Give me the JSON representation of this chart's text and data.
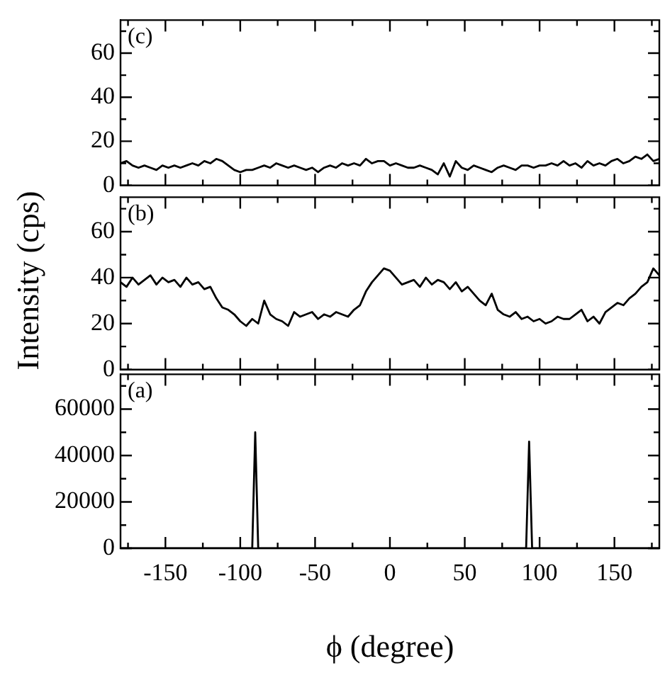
{
  "chart_data": [
    {
      "type": "line",
      "annotations": [
        "(c)"
      ],
      "xlim": [
        -180,
        180
      ],
      "xticks": [
        {
          "value": -175,
          "label": null
        },
        -150,
        {
          "value": -125,
          "label": null
        },
        -100,
        {
          "value": -75,
          "label": null
        },
        -50,
        {
          "value": -25,
          "label": null
        },
        0,
        {
          "value": 25,
          "label": null
        },
        50,
        {
          "value": 75,
          "label": null
        },
        100,
        {
          "value": 125,
          "label": null
        },
        150,
        {
          "value": 175,
          "label": null
        }
      ],
      "ylim": [
        0,
        75
      ],
      "yticks": [
        0,
        {
          "value": 10,
          "label": null
        },
        20,
        {
          "value": 30,
          "label": null
        },
        40,
        {
          "value": 50,
          "label": null
        },
        60,
        {
          "value": 70,
          "label": null
        }
      ],
      "tick_labels": "y",
      "grid": false,
      "legend": false,
      "marker": "none",
      "line_style": "solid",
      "x": [
        -180,
        -176,
        -172,
        -168,
        -164,
        -160,
        -156,
        -152,
        -148,
        -144,
        -140,
        -136,
        -132,
        -128,
        -124,
        -120,
        -116,
        -112,
        -108,
        -104,
        -100,
        -96,
        -92,
        -88,
        -84,
        -80,
        -76,
        -72,
        -68,
        -64,
        -60,
        -56,
        -52,
        -48,
        -44,
        -40,
        -36,
        -32,
        -28,
        -24,
        -20,
        -16,
        -12,
        -8,
        -4,
        0,
        4,
        8,
        12,
        16,
        20,
        24,
        28,
        32,
        36,
        40,
        44,
        48,
        52,
        56,
        60,
        64,
        68,
        72,
        76,
        80,
        84,
        88,
        92,
        96,
        100,
        104,
        108,
        112,
        116,
        120,
        124,
        128,
        132,
        136,
        140,
        144,
        148,
        152,
        156,
        160,
        164,
        168,
        172,
        176,
        180
      ],
      "series": [
        {
          "color": "#000000",
          "values": [
            10,
            11,
            9,
            8,
            9,
            8,
            7,
            9,
            8,
            9,
            8,
            9,
            10,
            9,
            11,
            10,
            12,
            11,
            9,
            7,
            6,
            7,
            7,
            8,
            9,
            8,
            10,
            9,
            8,
            9,
            8,
            7,
            8,
            6,
            8,
            9,
            8,
            10,
            9,
            10,
            9,
            12,
            10,
            11,
            11,
            9,
            10,
            9,
            8,
            8,
            9,
            8,
            7,
            5,
            10,
            4,
            11,
            8,
            7,
            9,
            8,
            7,
            6,
            8,
            9,
            8,
            7,
            9,
            9,
            8,
            9,
            9,
            10,
            9,
            11,
            9,
            10,
            8,
            11,
            9,
            10,
            9,
            11,
            12,
            10,
            11,
            13,
            12,
            14,
            11,
            12
          ]
        }
      ]
    },
    {
      "type": "line",
      "annotations": [
        "(b)"
      ],
      "ylabel": "Intensity (cps)",
      "xlim": [
        -180,
        180
      ],
      "xticks": [
        {
          "value": -175,
          "label": null
        },
        -150,
        {
          "value": -125,
          "label": null
        },
        -100,
        {
          "value": -75,
          "label": null
        },
        -50,
        {
          "value": -25,
          "label": null
        },
        0,
        {
          "value": 25,
          "label": null
        },
        50,
        {
          "value": 75,
          "label": null
        },
        100,
        {
          "value": 125,
          "label": null
        },
        150,
        {
          "value": 175,
          "label": null
        }
      ],
      "ylim": [
        0,
        75
      ],
      "yticks": [
        0,
        {
          "value": 10,
          "label": null
        },
        20,
        {
          "value": 30,
          "label": null
        },
        40,
        {
          "value": 50,
          "label": null
        },
        60,
        {
          "value": 70,
          "label": null
        }
      ],
      "tick_labels": "y",
      "grid": false,
      "legend": false,
      "marker": "none",
      "line_style": "solid",
      "x": [
        -180,
        -176,
        -172,
        -168,
        -164,
        -160,
        -156,
        -152,
        -148,
        -144,
        -140,
        -136,
        -132,
        -128,
        -124,
        -120,
        -116,
        -112,
        -108,
        -104,
        -100,
        -96,
        -92,
        -88,
        -84,
        -80,
        -76,
        -72,
        -68,
        -64,
        -60,
        -56,
        -52,
        -48,
        -44,
        -40,
        -36,
        -32,
        -28,
        -24,
        -20,
        -16,
        -12,
        -8,
        -4,
        0,
        4,
        8,
        12,
        16,
        20,
        24,
        28,
        32,
        36,
        40,
        44,
        48,
        52,
        56,
        60,
        64,
        68,
        72,
        76,
        80,
        84,
        88,
        92,
        96,
        100,
        104,
        108,
        112,
        116,
        120,
        124,
        128,
        132,
        136,
        140,
        144,
        148,
        152,
        156,
        160,
        164,
        168,
        172,
        176,
        180
      ],
      "series": [
        {
          "color": "#000000",
          "values": [
            38,
            36,
            40,
            37,
            39,
            41,
            37,
            40,
            38,
            39,
            36,
            40,
            37,
            38,
            35,
            36,
            31,
            27,
            26,
            24,
            21,
            19,
            22,
            20,
            30,
            24,
            22,
            21,
            19,
            25,
            23,
            24,
            25,
            22,
            24,
            23,
            25,
            24,
            23,
            26,
            28,
            34,
            38,
            41,
            44,
            43,
            40,
            37,
            38,
            39,
            36,
            40,
            37,
            39,
            38,
            35,
            38,
            34,
            36,
            33,
            30,
            28,
            33,
            26,
            24,
            23,
            25,
            22,
            23,
            21,
            22,
            20,
            21,
            23,
            22,
            22,
            24,
            26,
            21,
            23,
            20,
            25,
            27,
            29,
            28,
            31,
            33,
            36,
            38,
            44,
            41
          ]
        }
      ]
    },
    {
      "type": "line",
      "annotations": [
        "(a)"
      ],
      "xlabel": "ϕ (degree)",
      "xlim": [
        -180,
        180
      ],
      "xticks": [
        {
          "value": -175,
          "label": null
        },
        -150,
        {
          "value": -125,
          "label": null
        },
        -100,
        {
          "value": -75,
          "label": null
        },
        -50,
        {
          "value": -25,
          "label": null
        },
        0,
        {
          "value": 25,
          "label": null
        },
        50,
        {
          "value": 75,
          "label": null
        },
        100,
        {
          "value": 125,
          "label": null
        },
        150,
        {
          "value": 175,
          "label": null
        }
      ],
      "ylim": [
        0,
        75000
      ],
      "yticks": [
        0,
        {
          "value": 10000,
          "label": null
        },
        20000,
        {
          "value": 30000,
          "label": null
        },
        40000,
        {
          "value": 50000,
          "label": null
        },
        60000,
        {
          "value": 70000,
          "label": null
        }
      ],
      "grid": false,
      "legend": false,
      "marker": "none",
      "line_style": "solid",
      "x": [
        -180,
        -92,
        -90,
        -88,
        91,
        93,
        95,
        180
      ],
      "series": [
        {
          "color": "#000000",
          "values": [
            0,
            0,
            50000,
            0,
            0,
            46000,
            0,
            0
          ]
        }
      ]
    }
  ]
}
